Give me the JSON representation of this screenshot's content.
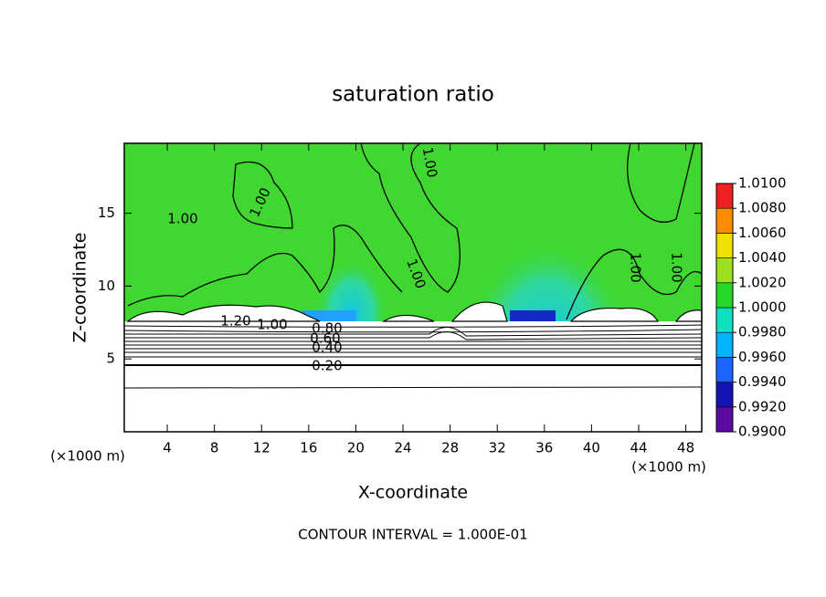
{
  "chart_data": {
    "type": "contour",
    "title": "saturation ratio",
    "x_label": "X-coordinate",
    "y_label": "Z-coordinate",
    "x_unit": "(×1000 m)",
    "y_unit": "(×1000 m)",
    "xlim": [
      0.35,
      49.35
    ],
    "ylim": [
      0,
      19.8
    ],
    "xticks": [
      4,
      8,
      12,
      16,
      20,
      24,
      28,
      32,
      36,
      40,
      44,
      48
    ],
    "yticks": [
      5,
      10,
      15
    ],
    "colorbar": {
      "ticks": [
        {
          "value": 0.99,
          "label": "0.9900"
        },
        {
          "value": 0.992,
          "label": "0.9920"
        },
        {
          "value": 0.994,
          "label": "0.9940"
        },
        {
          "value": 0.996,
          "label": "0.9960"
        },
        {
          "value": 0.998,
          "label": "0.9980"
        },
        {
          "value": 1.0,
          "label": "1.0000"
        },
        {
          "value": 1.002,
          "label": "1.0020"
        },
        {
          "value": 1.004,
          "label": "1.0040"
        },
        {
          "value": 1.006,
          "label": "1.0060"
        },
        {
          "value": 1.008,
          "label": "1.0080"
        },
        {
          "value": 1.01,
          "label": "1.0100"
        }
      ],
      "colors": [
        "#5a0ca0",
        "#1414b4",
        "#1e64ff",
        "#00b4ff",
        "#10e0c0",
        "#28d828",
        "#9ce01e",
        "#f0e000",
        "#ff8c00",
        "#f02020",
        "#f08c8c"
      ]
    },
    "contour_labels": [
      "1.00",
      "1.00",
      "1.00",
      "1.00",
      "1.00",
      "1.00",
      "1.20",
      "1.00",
      "0.80",
      "0.60",
      "0.40",
      "0.20"
    ],
    "footnote": "CONTOUR INTERVAL = 1.000E-01"
  }
}
